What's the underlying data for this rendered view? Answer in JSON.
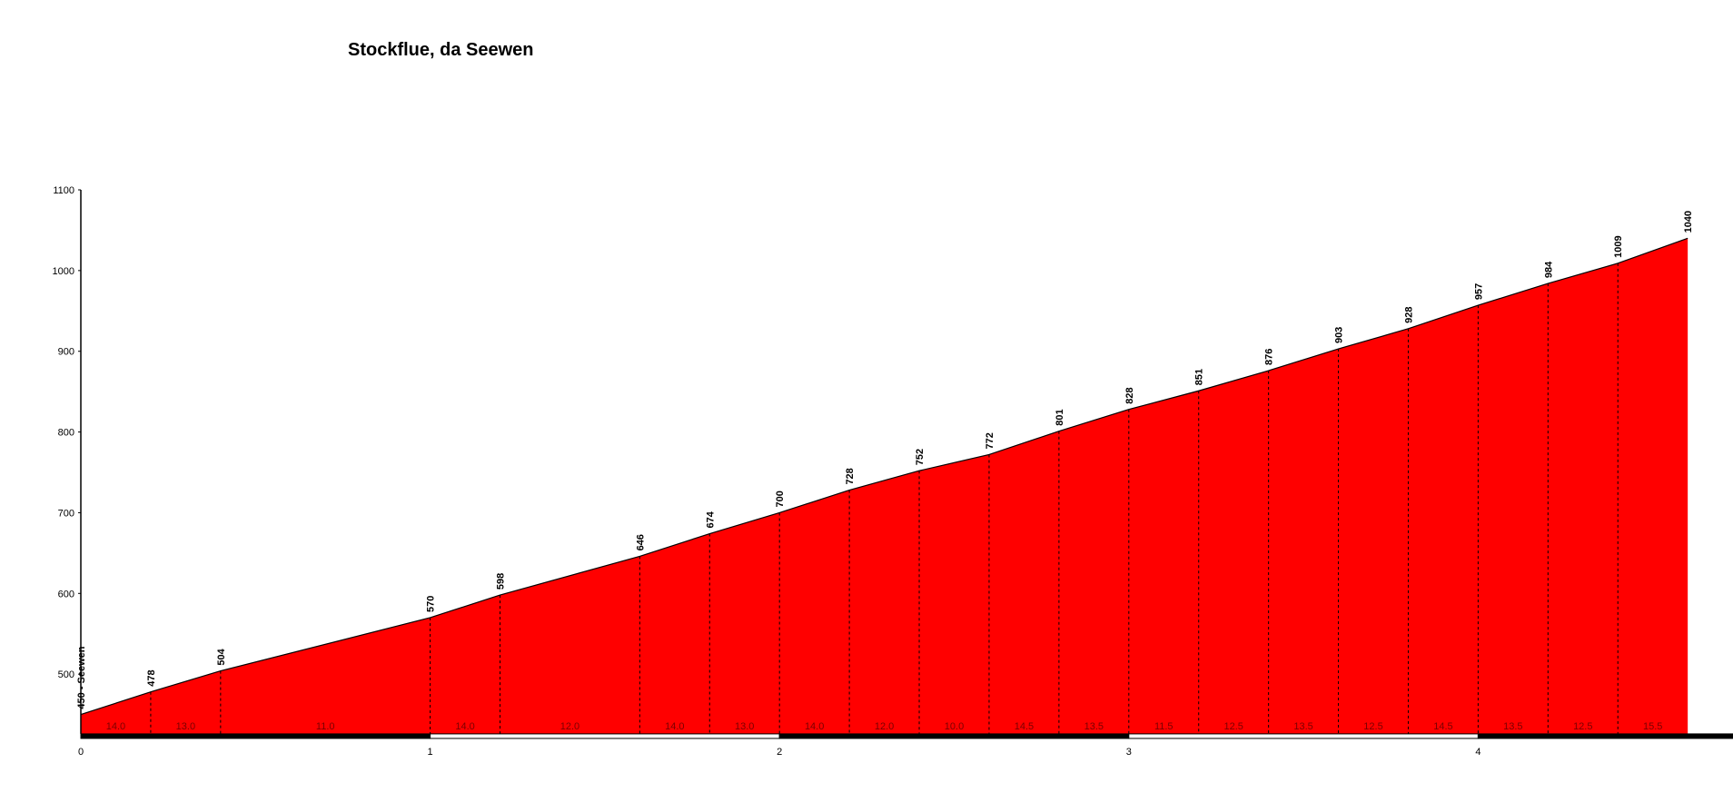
{
  "chart_data": {
    "type": "area",
    "title": "Stockflue, da Seewen",
    "xlabel": "",
    "ylabel": "",
    "xlim": [
      0,
      4.6
    ],
    "ylim": [
      426,
      1100
    ],
    "x_ticks": [
      "0",
      "1",
      "2",
      "3",
      "4"
    ],
    "y_ticks": [
      "500",
      "600",
      "700",
      "800",
      "900",
      "1000",
      "1100"
    ],
    "grid": false,
    "fill_color": "#ff0000",
    "x": [
      0,
      0.2,
      0.4,
      1.0,
      1.2,
      1.6,
      1.8,
      2.0,
      2.2,
      2.4,
      2.6,
      2.8,
      3.0,
      3.2,
      3.4,
      3.6,
      3.8,
      4.0,
      4.2,
      4.4,
      4.6
    ],
    "values": [
      450,
      478,
      504,
      570,
      598,
      646,
      674,
      700,
      728,
      752,
      772,
      801,
      828,
      851,
      876,
      903,
      928,
      957,
      984,
      1009,
      1040
    ],
    "point_labels": [
      "450 - Seewen",
      "478",
      "504",
      "570",
      "598",
      "646",
      "674",
      "700",
      "728",
      "752",
      "772",
      "801",
      "828",
      "851",
      "876",
      "903",
      "928",
      "957",
      "984",
      "1009",
      "1040"
    ],
    "segment_gradients": [
      "14.0",
      "13.0",
      "11.0",
      "14.0",
      "12.0",
      "14.0",
      "13.0",
      "14.0",
      "12.0",
      "10.0",
      "14.5",
      "13.5",
      "11.5",
      "12.5",
      "13.5",
      "12.5",
      "14.5",
      "13.5",
      "12.5",
      "15.5"
    ]
  }
}
